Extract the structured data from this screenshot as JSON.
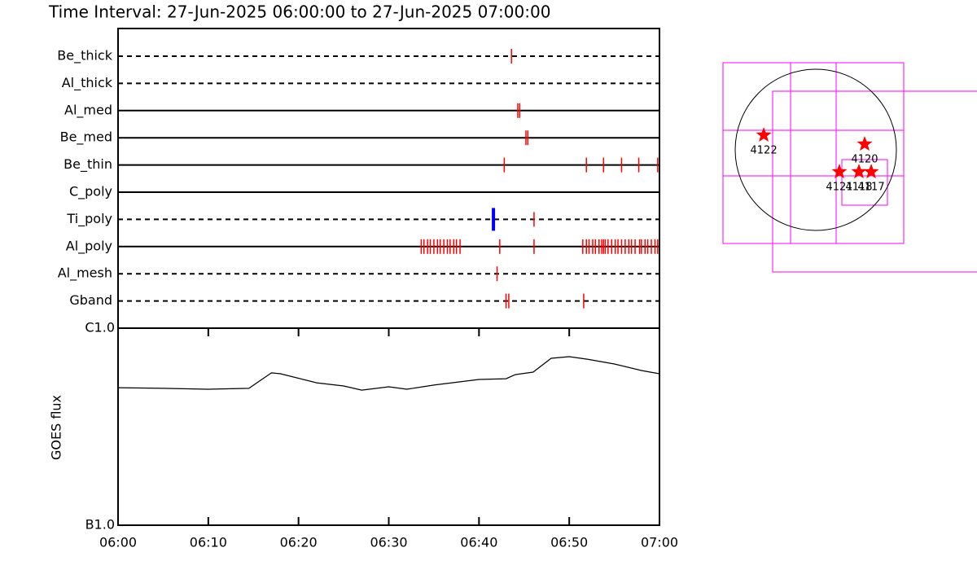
{
  "chart_data": [
    {
      "type": "event",
      "title": "Time Interval: 27-Jun-2025 06:00:00 to 27-Jun-2025 07:00:00",
      "xlim": [
        0,
        60
      ],
      "color": "#ff0000",
      "flag_color": "#0000ff",
      "series": [
        {
          "name": "Be_thick",
          "style": "dashed",
          "values": [
            43.6
          ]
        },
        {
          "name": "Al_thick",
          "style": "dashed",
          "values": []
        },
        {
          "name": "Al_med",
          "style": "solid",
          "values": [
            44.3,
            44.5
          ]
        },
        {
          "name": "Be_med",
          "style": "solid",
          "values": [
            45.2,
            45.4
          ]
        },
        {
          "name": "Be_thin",
          "style": "solid",
          "values": [
            42.8,
            51.9,
            53.8,
            55.8,
            57.7,
            59.8
          ]
        },
        {
          "name": "C_poly",
          "style": "solid",
          "values": []
        },
        {
          "name": "Ti_poly",
          "style": "dashed",
          "values": [
            46.1
          ],
          "flagged_values": [
            41.6
          ]
        },
        {
          "name": "Al_poly",
          "style": "solid",
          "values": [
            33.6,
            33.9,
            34.3,
            34.6,
            35.0,
            35.4,
            35.7,
            36.1,
            36.5,
            36.8,
            37.2,
            37.5,
            37.9,
            42.3,
            46.1,
            51.5,
            51.9,
            52.2,
            52.6,
            52.9,
            53.3,
            53.6,
            53.8,
            54.0,
            54.3,
            54.7,
            55.1,
            55.4,
            55.8,
            56.2,
            56.6,
            56.9,
            57.3,
            57.8,
            58.0,
            58.4,
            58.7,
            59.1,
            59.5,
            59.8
          ]
        },
        {
          "name": "Al_mesh",
          "style": "dashed",
          "values": [
            42.0
          ]
        },
        {
          "name": "Gband",
          "style": "dashed",
          "values": [
            43.0,
            43.3,
            51.6
          ]
        }
      ]
    },
    {
      "type": "line",
      "y_label": "GOES flux",
      "log_scale": true,
      "color": "#000000",
      "x": [
        0,
        5,
        10,
        14.5,
        17,
        18,
        22,
        25,
        27,
        30,
        32,
        35,
        40,
        43,
        44,
        46,
        48,
        50,
        52,
        55,
        58,
        60
      ],
      "values": [
        4.99e-07,
        4.95e-07,
        4.9e-07,
        4.95e-07,
        5.93e-07,
        5.87e-07,
        5.28e-07,
        5.09e-07,
        4.85e-07,
        5.04e-07,
        4.9e-07,
        5.14e-07,
        5.49e-07,
        5.54e-07,
        5.81e-07,
        5.98e-07,
        7.03e-07,
        7.17e-07,
        6.96e-07,
        6.58e-07,
        6.1e-07,
        5.87e-07
      ],
      "xlim": [
        0,
        60
      ],
      "xticks": [
        {
          "value": 0,
          "label": "06:00"
        },
        {
          "value": 10,
          "label": "06:10"
        },
        {
          "value": 20,
          "label": "06:20"
        },
        {
          "value": 30,
          "label": "06:30"
        },
        {
          "value": 40,
          "label": "06:40"
        },
        {
          "value": 50,
          "label": "06:50"
        },
        {
          "value": 60,
          "label": "07:00"
        }
      ],
      "ylim": [
        1e-07,
        1e-06
      ],
      "yticks": [
        {
          "value": 1e-07,
          "label": "B1.0"
        },
        {
          "value": 1e-06,
          "label": "C1.0"
        }
      ]
    },
    {
      "type": "scatter",
      "color": "#ff0000",
      "labels": [
        "4122",
        "4120",
        "4121",
        "4118",
        "4117"
      ],
      "x": [
        -620,
        582,
        281,
        514,
        660
      ],
      "values": [
        175,
        68,
        -262,
        -262,
        -262
      ]
    }
  ]
}
